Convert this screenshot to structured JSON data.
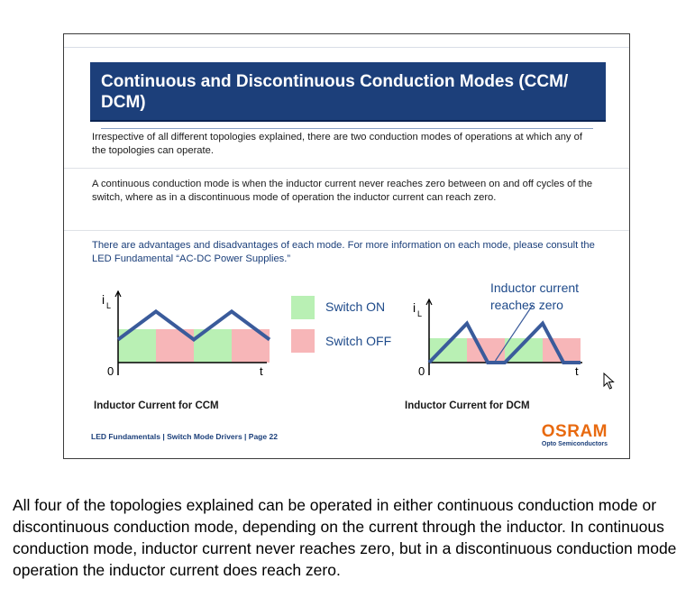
{
  "slide": {
    "title": "Continuous and Discontinuous Conduction Modes (CCM/ DCM)",
    "paragraphs": [
      "Irrespective of all different topologies explained, there are two conduction modes of operations at which any of the topologies can operate.",
      "A continuous conduction mode is when the inductor current never reaches zero between on and off cycles of the switch, where as in a discontinuous mode of operation the inductor current can reach zero.",
      "There are advantages and disadvantages of each mode.  For more information on each mode, please consult the LED Fundamental “AC-DC Power Supplies.”"
    ],
    "legend": {
      "on_label": "Switch ON",
      "off_label": "Switch OFF",
      "on_color": "#b9f0b4",
      "off_color": "#f7b6b8"
    },
    "annotation": "Inductor current reaches zero",
    "footer": "LED Fundamentals  |  Switch Mode Drivers  |  Page 22",
    "logo": {
      "brand": "OSRAM",
      "subtitle": "Opto Semiconductors"
    }
  },
  "chart_data": [
    {
      "type": "line",
      "title": "Inductor Current for CCM",
      "ylabel": "iL",
      "xlabel": "t",
      "origin_label": "0",
      "x": [
        0,
        1,
        2,
        3,
        4
      ],
      "y": [
        0.45,
        1.0,
        0.45,
        1.0,
        0.45
      ],
      "ylim": [
        0,
        1.2
      ],
      "intervals": [
        "on",
        "off",
        "on",
        "off"
      ],
      "grid": false
    },
    {
      "type": "line",
      "title": "Inductor Current for DCM",
      "ylabel": "iL",
      "xlabel": "t",
      "origin_label": "0",
      "x": [
        0,
        1,
        1.55,
        2,
        3,
        3.55,
        4
      ],
      "y": [
        0,
        1.0,
        0,
        0,
        1.0,
        0,
        0
      ],
      "ylim": [
        0,
        1.2
      ],
      "intervals": [
        "on",
        "off",
        "on",
        "off"
      ],
      "grid": false
    }
  ],
  "body_text": "All four of the topologies explained can be operated in either continuous conduction mode or discontinuous conduction mode, depending on the current through the inductor.  In continuous conduction mode, inductor current never reaches zero, but in a discontinuous conduction mode operation the inductor current does reach zero."
}
